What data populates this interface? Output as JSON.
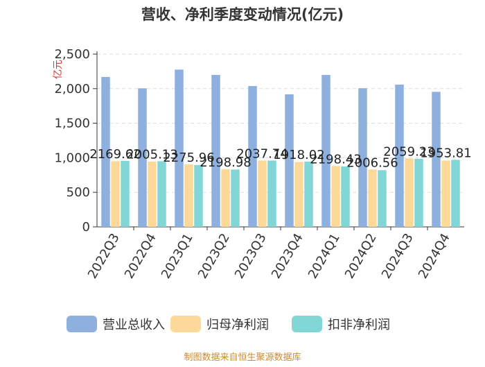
{
  "chart_data": {
    "type": "bar",
    "title": "营收、净利季度变动情况(亿元)",
    "ylabel": "亿元",
    "ylim": [
      0,
      2500
    ],
    "yticks": [
      "0",
      "500",
      "1,000",
      "1,500",
      "2,000",
      "2,500"
    ],
    "grid": true,
    "legend_position": "bottom",
    "categories": [
      "2022Q3",
      "2022Q4",
      "2023Q1",
      "2023Q2",
      "2023Q3",
      "2023Q4",
      "2024Q1",
      "2024Q2",
      "2024Q3",
      "2024Q4"
    ],
    "series": [
      {
        "name": "营业总收入",
        "color": "#8eb0df",
        "values": [
          2169.62,
          2005.13,
          2275.96,
          2198.98,
          2037.74,
          1918.02,
          2198.43,
          2006.56,
          2059.23,
          1953.81
        ],
        "labels": [
          "2169.62",
          "2005.13",
          "2275.96",
          "2198.98",
          "2037.74",
          "1918.02",
          "2198.43",
          "2006.56",
          "2059.23",
          "1953.81"
        ]
      },
      {
        "name": "归母净利润",
        "color": "#fdd999",
        "values": [
          950,
          945,
          905,
          835,
          960,
          940,
          880,
          830,
          990,
          960
        ]
      },
      {
        "name": "扣非净利润",
        "color": "#82d6d6",
        "values": [
          955,
          950,
          895,
          830,
          960,
          945,
          875,
          820,
          985,
          970
        ]
      }
    ]
  },
  "footer": {
    "source": "制图数据来自恒生聚源数据库"
  }
}
